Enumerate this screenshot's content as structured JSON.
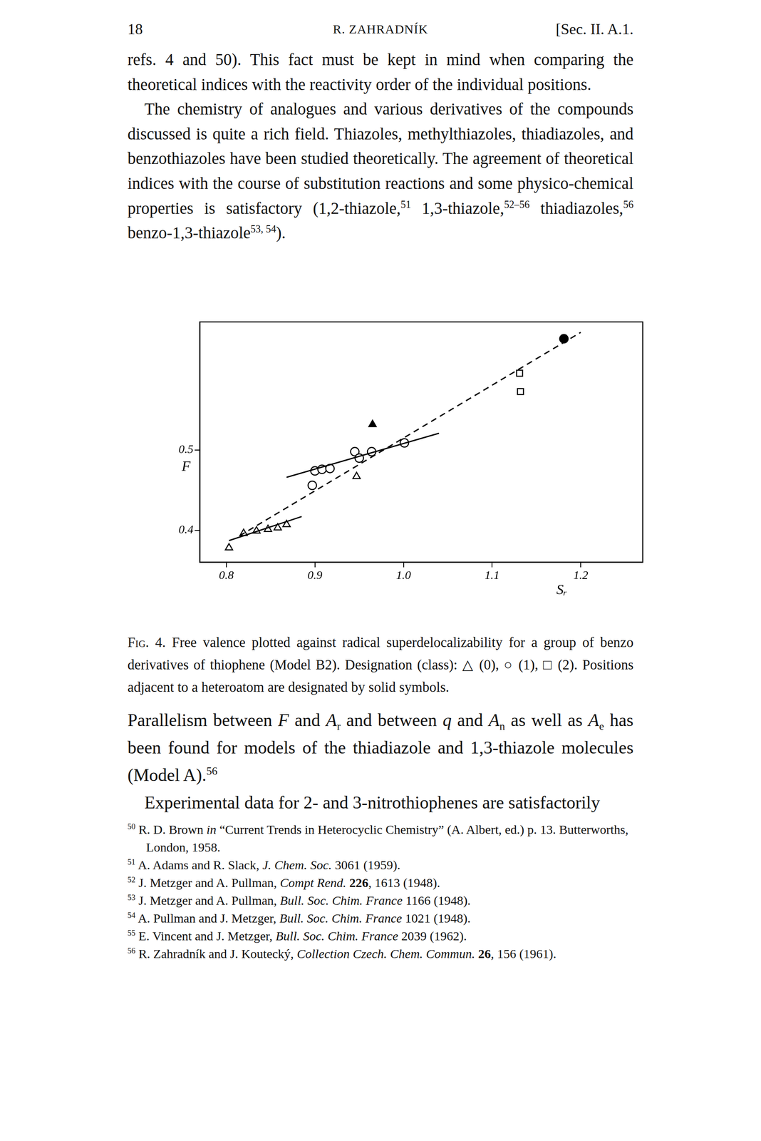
{
  "header": {
    "page": "18",
    "author": "R. ZAHRADNÍK",
    "section": "[Sec. II. A.1."
  },
  "top_paragraphs": [
    {
      "indent": false,
      "runs": [
        {
          "t": "refs. 4 and 50). This fact must be kept in mind when comparing the theoretical indices with the reactivity order of the individual positions."
        }
      ]
    },
    {
      "indent": true,
      "runs": [
        {
          "t": "The chemistry of analogues and various derivatives of the compounds discussed is quite a rich field. Thiazoles, methylthiazoles, thiadiazoles, and benzothiazoles have been studied theoretically. The agreement of theoretical indices with the course of substitution reactions and some physico-chemical properties is satisfactory (1,2-thiazole,"
        },
        {
          "t": "51",
          "style": "sup"
        },
        {
          "t": " 1,3-thiazole,"
        },
        {
          "t": "52–56",
          "style": "sup"
        },
        {
          "t": " thiadiazoles,"
        },
        {
          "t": "56",
          "style": "sup"
        },
        {
          "t": " benzo-1,3-thiazole"
        },
        {
          "t": "53, 54",
          "style": "sup"
        },
        {
          "t": ")."
        }
      ]
    }
  ],
  "chart_data": {
    "type": "scatter",
    "x_label": "Sᵣ",
    "y_label": "F",
    "xlim": [
      0.77,
      1.27
    ],
    "ylim": [
      0.36,
      0.66
    ],
    "xticks": [
      0.8,
      0.9,
      {
        "value": 1,
        "label": "1.0"
      },
      1.1,
      1.2
    ],
    "yticks": [
      0.4,
      0.5
    ],
    "grid": false,
    "series": [
      {
        "type": "line",
        "line_style": "dashed",
        "color": "#000000",
        "x": [
          0.815,
          1.2
        ],
        "values": [
          0.393,
          0.647
        ]
      },
      {
        "type": "line",
        "line_style": "solid",
        "color": "#000000",
        "x": [
          0.868,
          1.04
        ],
        "values": [
          0.466,
          0.521
        ]
      },
      {
        "type": "line",
        "line_style": "solid",
        "color": "#000000",
        "x": [
          0.803,
          0.885
        ],
        "values": [
          0.387,
          0.417
        ]
      },
      {
        "type": "scatter",
        "marker": "open_triangle",
        "color": "#000000",
        "x": [
          0.803,
          0.8195,
          0.834,
          0.847,
          0.858,
          0.868,
          0.947
        ],
        "values": [
          0.378,
          0.396,
          0.399,
          0.401,
          0.403,
          0.407,
          0.467
        ]
      },
      {
        "type": "scatter",
        "marker": "filled_triangle",
        "color": "#000000",
        "x": [
          0.965
        ],
        "values": [
          0.532
        ]
      },
      {
        "type": "scatter",
        "marker": "open_circle",
        "color": "#000000",
        "x": [
          0.897,
          0.9,
          0.908,
          0.917,
          0.945,
          0.95,
          0.964,
          1.001
        ],
        "values": [
          0.456,
          0.474,
          0.476,
          0.477,
          0.498,
          0.49,
          0.498,
          0.509
        ]
      },
      {
        "type": "scatter",
        "marker": "filled_circle",
        "color": "#000000",
        "x": [
          1.181
        ],
        "values": [
          0.639
        ]
      },
      {
        "type": "scatter",
        "marker": "open_square",
        "color": "#000000",
        "x": [
          1.131,
          1.132
        ],
        "values": [
          0.596,
          0.573
        ]
      }
    ]
  },
  "caption": {
    "label": "Fig. 4.",
    "text": " Free valence plotted against radical superdelocalizability for a group of benzo derivatives of thiophene (Model B2). Designation (class): △ (0), ○ (1), □ (2). Positions adjacent to a heteroatom are designated by solid symbols."
  },
  "bottom_paragraphs": [
    {
      "indent": false,
      "runs": [
        {
          "t": "Parallelism between "
        },
        {
          "t": "F",
          "style": "i"
        },
        {
          "t": " and "
        },
        {
          "t": "A",
          "style": "i"
        },
        {
          "t": "r",
          "style": "sub"
        },
        {
          "t": " and between "
        },
        {
          "t": "q",
          "style": "i"
        },
        {
          "t": " and "
        },
        {
          "t": "A",
          "style": "i"
        },
        {
          "t": "n",
          "style": "sub"
        },
        {
          "t": " as well as "
        },
        {
          "t": "A",
          "style": "i"
        },
        {
          "t": "e",
          "style": "sub"
        },
        {
          "t": " has been found for models of the thiadiazole and 1,3-thiazole molecules (Model A)."
        },
        {
          "t": "56",
          "style": "sup"
        }
      ]
    },
    {
      "indent": true,
      "runs": [
        {
          "t": "Experimental data for 2- and 3-nitrothiophenes are satisfactorily"
        }
      ]
    }
  ],
  "footnotes": [
    {
      "n": "50",
      "runs": [
        {
          "t": "R. D. Brown "
        },
        {
          "t": "in",
          "style": "i"
        },
        {
          "t": " “Current Trends in Heterocyclic Chemistry” (A. Albert, ed.) p. 13. Butterworths, London, 1958."
        }
      ]
    },
    {
      "n": "51",
      "runs": [
        {
          "t": "A. Adams and R. Slack, "
        },
        {
          "t": "J. Chem. Soc.",
          "style": "i"
        },
        {
          "t": " 3061 (1959)."
        }
      ]
    },
    {
      "n": "52",
      "runs": [
        {
          "t": "J. Metzger and A. Pullman, "
        },
        {
          "t": "Compt Rend.",
          "style": "i"
        },
        {
          "t": " "
        },
        {
          "t": "226",
          "style": "b"
        },
        {
          "t": ", 1613 (1948)."
        }
      ]
    },
    {
      "n": "53",
      "runs": [
        {
          "t": "J. Metzger and A. Pullman, "
        },
        {
          "t": "Bull. Soc. Chim. France",
          "style": "i"
        },
        {
          "t": " 1166 (1948)."
        }
      ]
    },
    {
      "n": "54",
      "runs": [
        {
          "t": "A. Pullman and J. Metzger, "
        },
        {
          "t": "Bull. Soc. Chim. France",
          "style": "i"
        },
        {
          "t": " 1021 (1948)."
        }
      ]
    },
    {
      "n": "55",
      "runs": [
        {
          "t": "E. Vincent and J. Metzger, "
        },
        {
          "t": "Bull. Soc. Chim. France",
          "style": "i"
        },
        {
          "t": " 2039 (1962)."
        }
      ]
    },
    {
      "n": "56",
      "runs": [
        {
          "t": "R. Zahradník and J. Koutecký, "
        },
        {
          "t": "Collection Czech. Chem. Commun.",
          "style": "i"
        },
        {
          "t": " "
        },
        {
          "t": "26",
          "style": "b"
        },
        {
          "t": ", 156 (1961)."
        }
      ]
    }
  ]
}
